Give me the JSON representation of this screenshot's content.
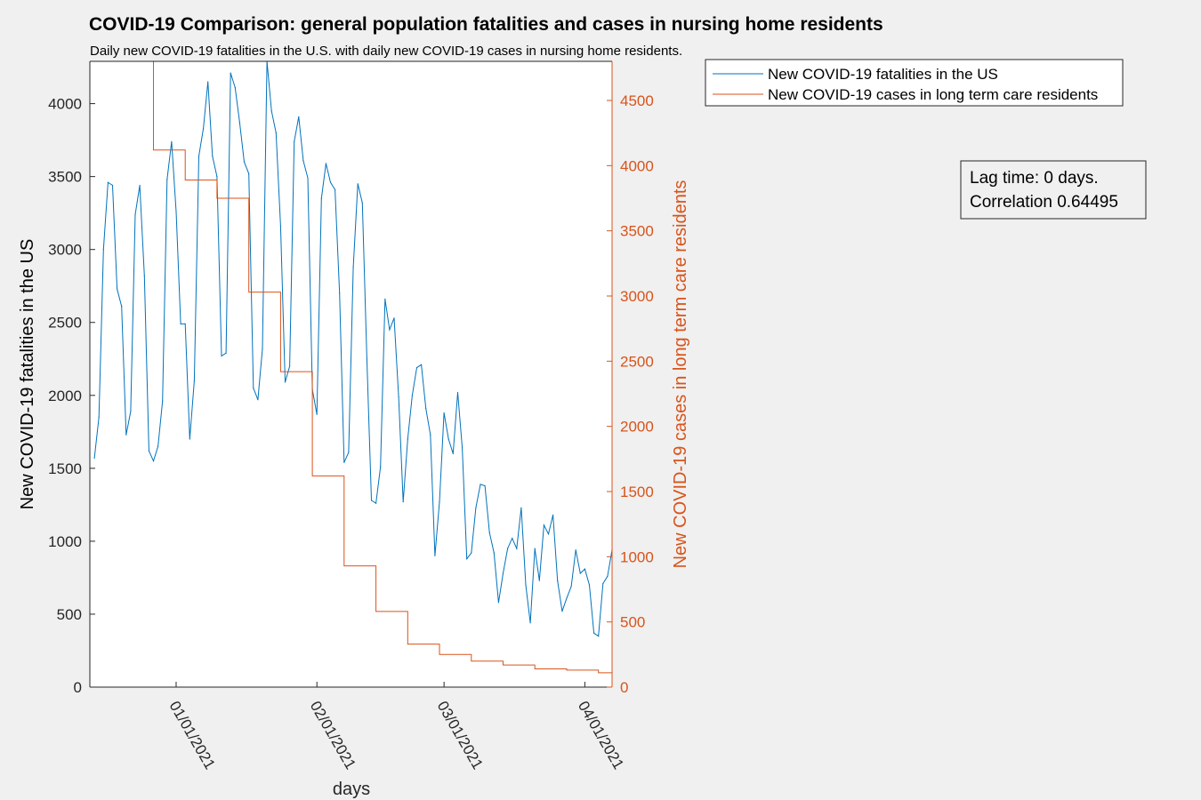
{
  "chart_data": {
    "type": "line",
    "title": "COVID-19 Comparison: general population fatalities and cases in nursing home residents",
    "subtitle": "Daily new COVID-19 fatalities in the U.S. with daily new COVID-19 cases in nursing home residents.",
    "xlabel": "days",
    "ylabel_left": "New COVID-19 fatalities in the US",
    "ylabel_right": "New COVID-19 cases in long term care residents",
    "xlim": [
      "2020-12-13",
      "2021-04-07"
    ],
    "ylim_left": [
      0,
      4290
    ],
    "ylim_right": [
      0,
      4800
    ],
    "xticks": [
      {
        "date": "2021-01-01",
        "label": "01/01/2021"
      },
      {
        "date": "2021-02-01",
        "label": "02/01/2021"
      },
      {
        "date": "2021-03-01",
        "label": "03/01/2021"
      },
      {
        "date": "2021-04-01",
        "label": "04/01/2021"
      }
    ],
    "yticks_left": [
      0,
      500,
      1000,
      1500,
      2000,
      2500,
      3000,
      3500,
      4000
    ],
    "yticks_right": [
      0,
      500,
      1000,
      1500,
      2000,
      2500,
      3000,
      3500,
      4000,
      4500
    ],
    "grid": false,
    "legend_position": "top-right outside",
    "series": [
      {
        "name": "New COVID-19 fatalities in the US",
        "axis": "left",
        "color": "#0072bd",
        "start_date": "2020-12-14",
        "values": [
          1570,
          1850,
          3000,
          3460,
          3440,
          2730,
          2610,
          1730,
          1890,
          3240,
          3440,
          2820,
          1620,
          1550,
          1650,
          1960,
          3480,
          3740,
          3260,
          2490,
          2490,
          1700,
          2100,
          3640,
          3830,
          4150,
          3640,
          3500,
          2270,
          2290,
          4210,
          4110,
          3870,
          3600,
          3520,
          2050,
          1970,
          2320,
          4290,
          3950,
          3800,
          3160,
          2090,
          2200,
          3740,
          3910,
          3610,
          3490,
          2040,
          1870,
          3350,
          3590,
          3460,
          3410,
          2700,
          1540,
          1610,
          2880,
          3450,
          3320,
          2250,
          1280,
          1260,
          1510,
          2660,
          2450,
          2530,
          1990,
          1270,
          1700,
          2000,
          2190,
          2210,
          1910,
          1730,
          900,
          1270,
          1880,
          1700,
          1600,
          2020,
          1640,
          880,
          920,
          1230,
          1390,
          1380,
          1060,
          920,
          580,
          780,
          950,
          1020,
          950,
          1230,
          700,
          440,
          950,
          730,
          1110,
          1050,
          1180,
          730,
          520,
          610,
          690,
          940,
          780,
          810,
          700,
          370,
          350,
          710,
          760,
          940
        ]
      },
      {
        "name": "New COVID-19 cases in long term care residents",
        "axis": "right",
        "color": "#d95319",
        "steps": [
          {
            "start": "2020-12-13",
            "end": "2020-12-20",
            "value": 4800
          },
          {
            "start": "2020-12-20",
            "end": "2020-12-27",
            "value": 4800
          },
          {
            "start": "2020-12-27",
            "end": "2021-01-03",
            "value": 4120
          },
          {
            "start": "2021-01-03",
            "end": "2021-01-10",
            "value": 3890
          },
          {
            "start": "2021-01-10",
            "end": "2021-01-17",
            "value": 3750
          },
          {
            "start": "2021-01-17",
            "end": "2021-01-24",
            "value": 3030
          },
          {
            "start": "2021-01-24",
            "end": "2021-01-31",
            "value": 2420
          },
          {
            "start": "2021-01-31",
            "end": "2021-02-07",
            "value": 1620
          },
          {
            "start": "2021-02-07",
            "end": "2021-02-14",
            "value": 930
          },
          {
            "start": "2021-02-14",
            "end": "2021-02-21",
            "value": 580
          },
          {
            "start": "2021-02-21",
            "end": "2021-02-28",
            "value": 330
          },
          {
            "start": "2021-02-28",
            "end": "2021-03-07",
            "value": 250
          },
          {
            "start": "2021-03-07",
            "end": "2021-03-14",
            "value": 200
          },
          {
            "start": "2021-03-14",
            "end": "2021-03-21",
            "value": 170
          },
          {
            "start": "2021-03-21",
            "end": "2021-03-28",
            "value": 140
          },
          {
            "start": "2021-03-28",
            "end": "2021-04-04",
            "value": 130
          },
          {
            "start": "2021-04-04",
            "end": "2021-04-07",
            "value": 110
          }
        ]
      }
    ],
    "annotation": {
      "lines": [
        "Lag time: 0 days.",
        "Correlation 0.64495"
      ]
    },
    "colors": {
      "background": "#f0f0f0",
      "axes_background": "#ffffff",
      "left_axis": "#000000",
      "right_axis": "#d95319"
    }
  }
}
